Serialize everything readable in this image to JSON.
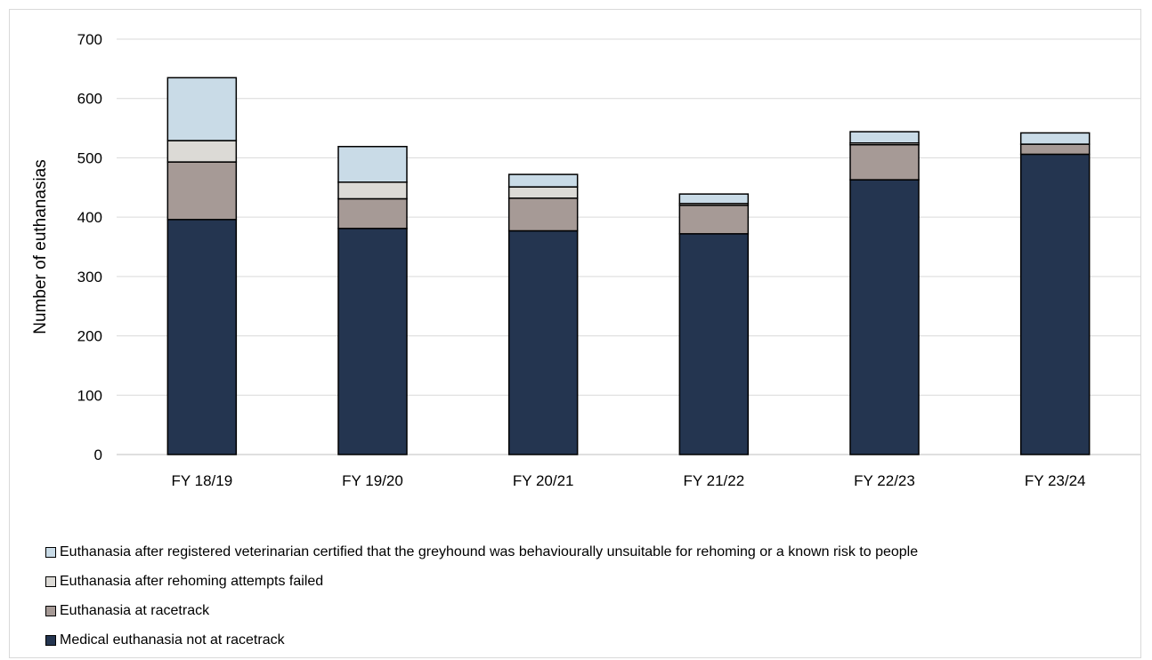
{
  "chart_data": {
    "type": "bar",
    "stacked": true,
    "categories": [
      "FY 18/19",
      "FY 19/20",
      "FY 20/21",
      "FY 21/22",
      "FY 22/23",
      "FY 23/24"
    ],
    "series": [
      {
        "name": "Medical euthanasia not at racetrack",
        "color": "#243550",
        "values": [
          396,
          381,
          377,
          372,
          463,
          506
        ]
      },
      {
        "name": "Euthanasia at racetrack",
        "color": "#a69a96",
        "values": [
          97,
          50,
          55,
          48,
          59,
          17
        ]
      },
      {
        "name": "Euthanasia after rehoming attempts failed",
        "color": "#dcdad6",
        "values": [
          36,
          28,
          19,
          3,
          3,
          0
        ]
      },
      {
        "name": "Euthanasia after registered veterinarian certified that the greyhound was behaviourally unsuitable for rehoming or a known risk to people",
        "color": "#c9dbe7",
        "values": [
          106,
          60,
          21,
          16,
          19,
          19
        ]
      }
    ],
    "legend_order": [
      3,
      2,
      1,
      0
    ],
    "ylabel": "Number of euthanasias",
    "xlabel": "",
    "ylim": [
      0,
      700
    ],
    "yticks": [
      0,
      100,
      200,
      300,
      400,
      500,
      600,
      700
    ],
    "grid": true,
    "legend_position": "bottom"
  }
}
